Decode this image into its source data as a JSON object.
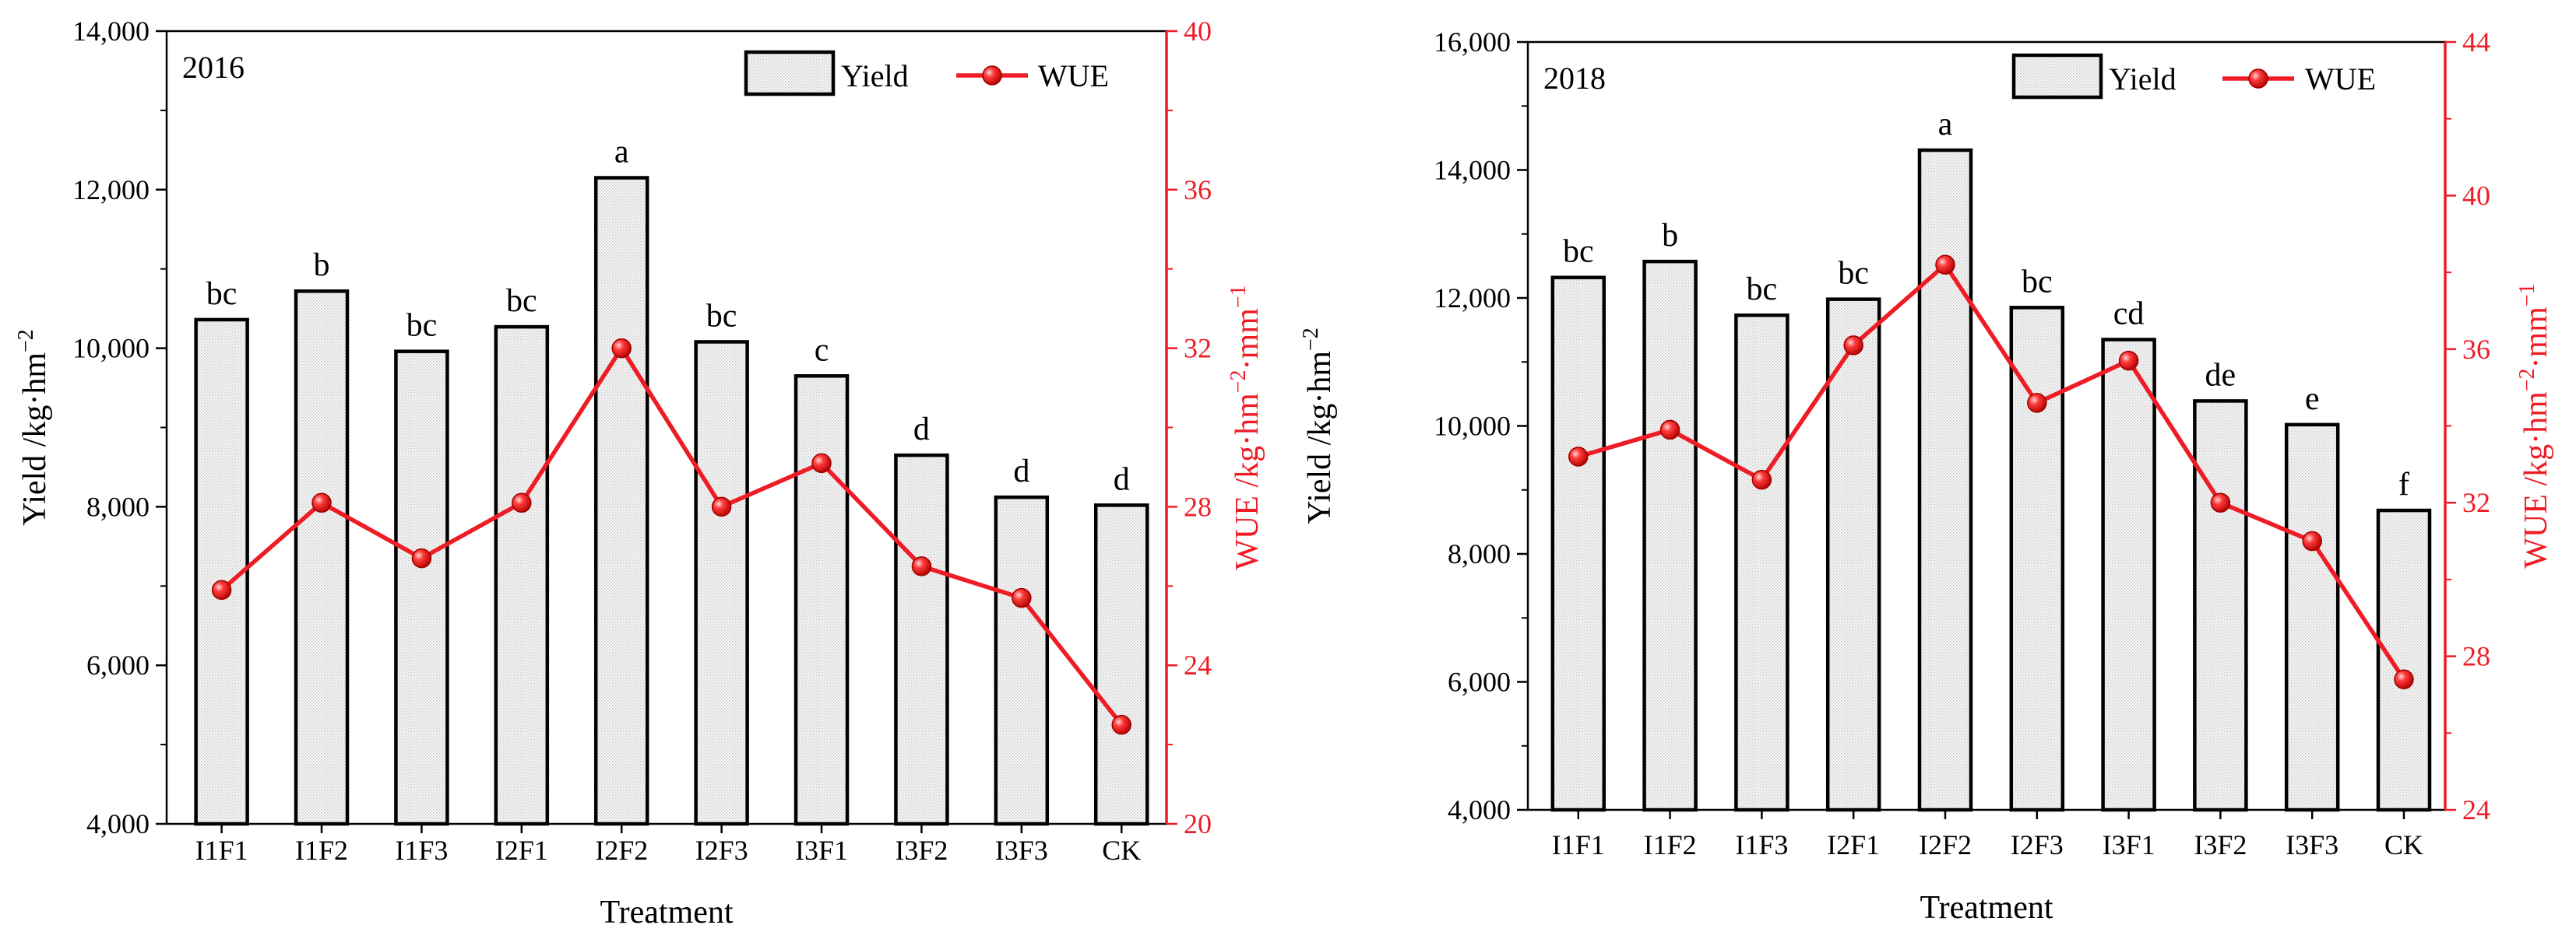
{
  "colors": {
    "wue_line": "#ee1c25",
    "bar_fill": "#f4f4f4",
    "bar_stroke": "#000000"
  },
  "chart_data": [
    {
      "type": "bar",
      "title": "2016",
      "xlabel": "Treatment",
      "ylabel": "Yield /kg·hm",
      "ylabel_sup": "−2",
      "y2label": "WUE /kg·hm",
      "y2label_sup1": "−2",
      "y2label_mid": "·mm",
      "y2label_sup2": "−1",
      "categories": [
        "I1F1",
        "I1F2",
        "I1F3",
        "I2F1",
        "I2F2",
        "I2F3",
        "I3F1",
        "I3F2",
        "I3F3",
        "CK"
      ],
      "ylim": [
        4000,
        14000
      ],
      "yticks": [
        4000,
        6000,
        8000,
        10000,
        12000,
        14000
      ],
      "ytick_labels": [
        "4,000",
        "6,000",
        "8,000",
        "10,000",
        "12,000",
        "14,000"
      ],
      "y2lim": [
        20,
        40
      ],
      "y2ticks": [
        20,
        24,
        28,
        32,
        36,
        40
      ],
      "y2tick_labels": [
        "20",
        "24",
        "28",
        "32",
        "36",
        "40"
      ],
      "series": [
        {
          "name": "Yield",
          "kind": "bar",
          "values": [
            10360,
            10720,
            9960,
            10270,
            12150,
            10080,
            9650,
            8650,
            8120,
            8020
          ],
          "labels": [
            "bc",
            "b",
            "bc",
            "bc",
            "a",
            "bc",
            "c",
            "d",
            "d",
            "d"
          ]
        },
        {
          "name": "WUE",
          "kind": "line",
          "axis": "right",
          "values": [
            25.9,
            28.1,
            26.7,
            28.1,
            32.0,
            28.0,
            29.1,
            26.5,
            25.7,
            22.5
          ]
        }
      ],
      "legend": "top-right"
    },
    {
      "type": "bar",
      "title": "2018",
      "xlabel": "Treatment",
      "ylabel": "Yield  /kg·hm",
      "ylabel_sup": "−2",
      "y2label": "WUE /kg·hm",
      "y2label_sup1": "−2",
      "y2label_mid": "·mm",
      "y2label_sup2": "−1",
      "categories": [
        "I1F1",
        "I1F2",
        "I1F3",
        "I2F1",
        "I2F2",
        "I2F3",
        "I3F1",
        "I3F2",
        "I3F3",
        "CK"
      ],
      "ylim": [
        4000,
        16000
      ],
      "yticks": [
        4000,
        6000,
        8000,
        10000,
        12000,
        14000,
        16000
      ],
      "ytick_labels": [
        "4,000",
        "6,000",
        "8,000",
        "10,000",
        "12,000",
        "14,000",
        "16,000"
      ],
      "y2lim": [
        24,
        44
      ],
      "y2ticks": [
        24,
        28,
        32,
        36,
        40,
        44
      ],
      "y2tick_labels": [
        "24",
        "28",
        "32",
        "36",
        "40",
        "44"
      ],
      "series": [
        {
          "name": "Yield",
          "kind": "bar",
          "values": [
            12320,
            12570,
            11730,
            11980,
            14310,
            11850,
            11350,
            10390,
            10020,
            8680
          ],
          "labels": [
            "bc",
            "b",
            "bc",
            "bc",
            "a",
            "bc",
            "cd",
            "de",
            "e",
            "f"
          ]
        },
        {
          "name": "WUE",
          "kind": "line",
          "axis": "right",
          "values": [
            33.2,
            33.9,
            32.6,
            36.1,
            38.2,
            34.6,
            35.7,
            32.0,
            31.0,
            27.4
          ]
        }
      ],
      "legend": "top-right"
    }
  ]
}
